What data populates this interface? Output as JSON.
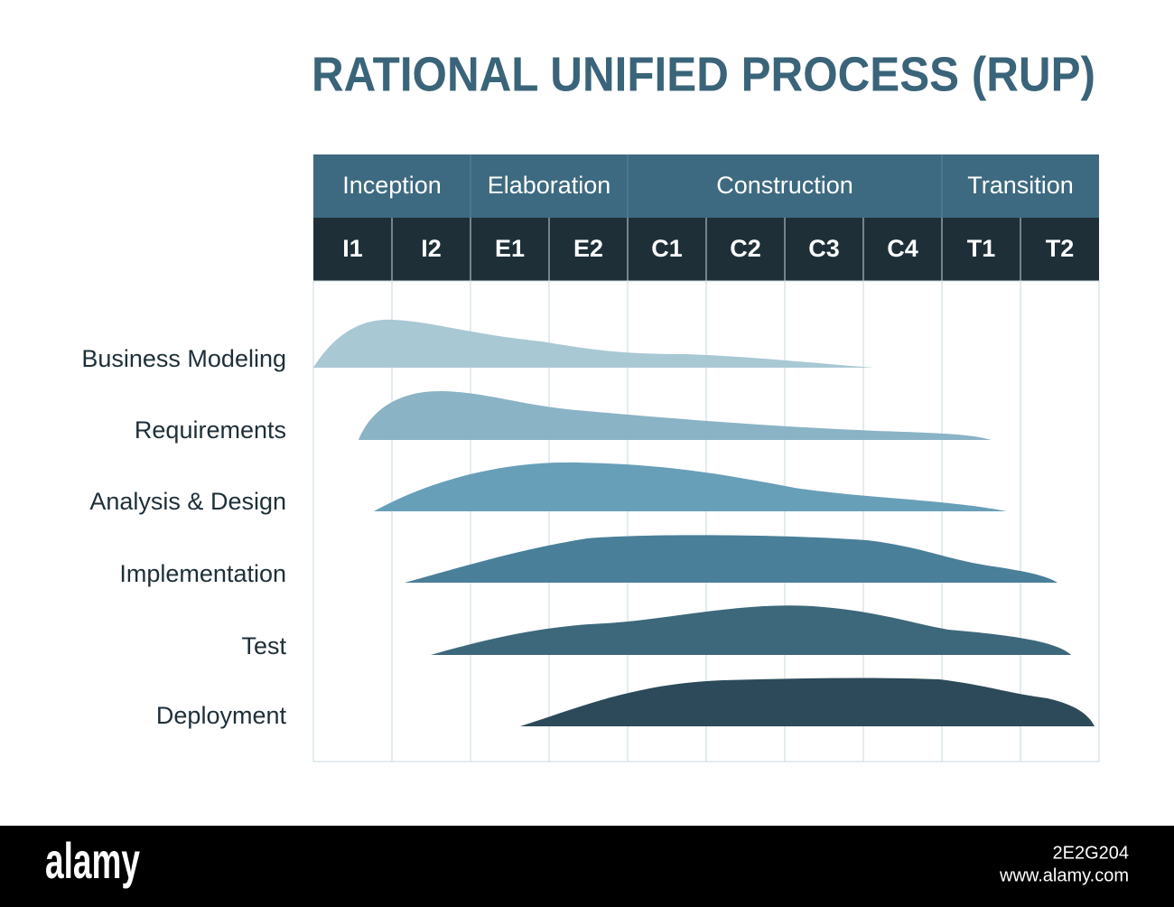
{
  "title": "RATIONAL UNIFIED PROCESS (RUP)",
  "phases": [
    "Inception",
    "Elaboration",
    "Construction",
    "Transition"
  ],
  "iterations": [
    "I1",
    "I2",
    "E1",
    "E2",
    "C1",
    "C2",
    "C3",
    "C4",
    "T1",
    "T2"
  ],
  "disciplines": [
    "Business Modeling",
    "Requirements",
    "Analysis & Design",
    "Implementation",
    "Test",
    "Deployment"
  ],
  "footer": {
    "brand": "alamy",
    "image_id": "2E2G204",
    "url": "www.alamy.com"
  }
}
